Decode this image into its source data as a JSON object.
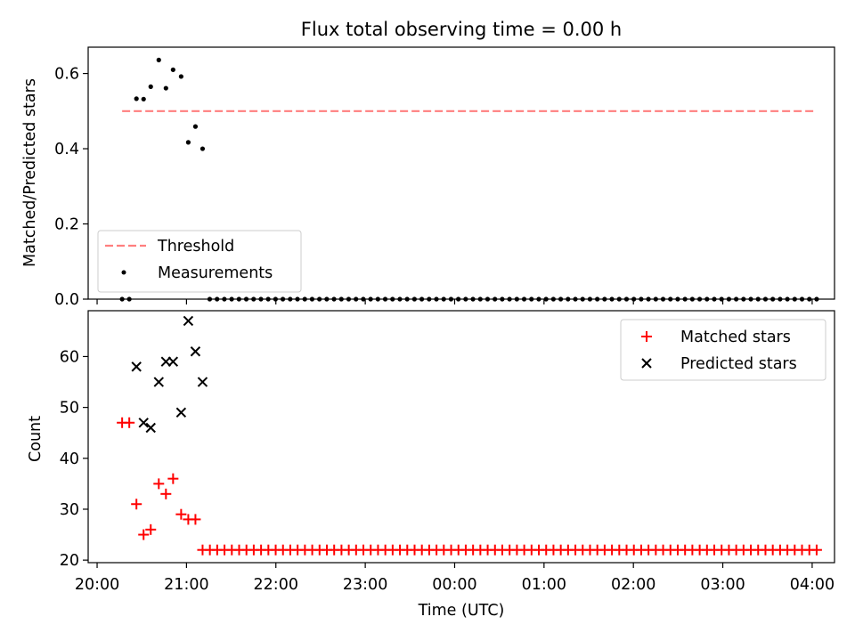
{
  "colors": {
    "threshold": "#ff7f7f",
    "measurements": "#000000",
    "matched": "#ff0000",
    "predicted": "#000000"
  },
  "chart_data": [
    {
      "type": "scatter",
      "title": "Flux total observing time = 0.00 h",
      "xlabel": "",
      "ylabel": "Matched/Predicted stars",
      "xlim": [
        -0.1,
        8.25
      ],
      "ylim": [
        0.0,
        0.67
      ],
      "yticks": [
        0.0,
        0.2,
        0.4,
        0.6
      ],
      "ytick_labels": [
        "0.0",
        "0.2",
        "0.4",
        "0.6"
      ],
      "legend": {
        "position": "lower-left",
        "entries": [
          "Threshold",
          "Measurements"
        ]
      },
      "series": [
        {
          "name": "Threshold",
          "kind": "dashed-line",
          "x": [
            0.28,
            8.05
          ],
          "y": [
            0.5,
            0.5
          ]
        },
        {
          "name": "Measurements",
          "kind": "points",
          "x": [
            0.28,
            0.36,
            0.44,
            0.52,
            0.6,
            0.69,
            0.77,
            0.85,
            0.94,
            1.02,
            1.1,
            1.18,
            1.26
          ],
          "y": [
            0.0,
            0.0,
            0.533,
            0.532,
            0.565,
            0.636,
            0.561,
            0.61,
            0.592,
            0.417,
            0.459,
            0.4,
            0.0
          ],
          "zeros_start": 1.26,
          "zeros_end": 8.05,
          "zeros_count": 84
        }
      ]
    },
    {
      "type": "scatter",
      "title": "",
      "xlabel": "Time (UTC)",
      "ylabel": "Count",
      "xlim": [
        -0.1,
        8.25
      ],
      "ylim": [
        19.5,
        69.0
      ],
      "yticks": [
        20,
        30,
        40,
        50,
        60
      ],
      "ytick_labels": [
        "20",
        "30",
        "40",
        "50",
        "60"
      ],
      "xticks": [
        0,
        1,
        2,
        3,
        4,
        5,
        6,
        7,
        8
      ],
      "xtick_labels": [
        "20:00",
        "21:00",
        "22:00",
        "23:00",
        "00:00",
        "01:00",
        "02:00",
        "03:00",
        "04:00"
      ],
      "legend": {
        "position": "upper-right",
        "entries": [
          "Matched stars",
          "Predicted stars"
        ]
      },
      "series": [
        {
          "name": "Matched stars",
          "marker": "plus",
          "x": [
            0.28,
            0.36,
            0.44,
            0.52,
            0.6,
            0.69,
            0.77,
            0.85,
            0.94,
            1.02,
            1.1,
            1.18
          ],
          "y": [
            47,
            47,
            31,
            25,
            26,
            35,
            33,
            36,
            29,
            28,
            28,
            22
          ],
          "constant_start": 1.18,
          "constant_end": 8.05,
          "constant_count": 85,
          "constant_value": 22
        },
        {
          "name": "Predicted stars",
          "marker": "x",
          "x": [
            0.44,
            0.52,
            0.6,
            0.69,
            0.77,
            0.85,
            0.94,
            1.02,
            1.1,
            1.18
          ],
          "y": [
            58,
            47,
            46,
            55,
            59,
            59,
            49,
            67,
            61,
            55
          ]
        }
      ]
    }
  ]
}
